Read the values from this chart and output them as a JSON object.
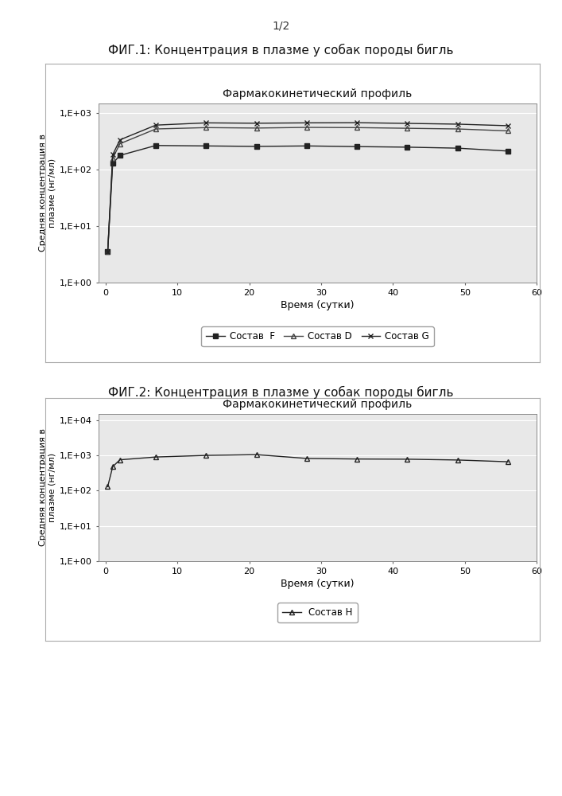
{
  "page_label": "1/2",
  "fig1_title": "ФИГ.1: Концентрация в плазме у собак породы бигль",
  "fig2_title": "ФИГ.2: Концентрация в плазме у собак породы бигль",
  "chart_title": "Фармакокинетический профиль",
  "ylabel": "Средняя концентрация в\nплазме (нг/мл)",
  "xlabel": "Время (сутки)",
  "fig1": {
    "series_F": {
      "label": "Состав  F",
      "x": [
        0.3,
        1,
        2,
        7,
        14,
        21,
        28,
        35,
        42,
        49,
        56
      ],
      "y": [
        3.5,
        130,
        180,
        270,
        265,
        260,
        265,
        258,
        252,
        242,
        215
      ],
      "marker": "s",
      "color": "#222222",
      "linestyle": "-"
    },
    "series_D": {
      "label": "Состав D",
      "x": [
        0.3,
        1,
        2,
        7,
        14,
        21,
        28,
        35,
        42,
        49,
        56
      ],
      "y": [
        3.5,
        160,
        290,
        530,
        560,
        550,
        565,
        560,
        545,
        530,
        490
      ],
      "marker": "^",
      "color": "#444444",
      "linestyle": "-"
    },
    "series_G": {
      "label": "Состав G",
      "x": [
        0.3,
        1,
        2,
        7,
        14,
        21,
        28,
        35,
        42,
        49,
        56
      ],
      "y": [
        3.5,
        185,
        340,
        620,
        680,
        670,
        680,
        685,
        665,
        645,
        605
      ],
      "marker": "x",
      "color": "#222222",
      "linestyle": "-"
    },
    "ylim": [
      1.0,
      1500.0
    ],
    "xlim": [
      -1,
      60
    ],
    "yticks": [
      1.0,
      10.0,
      100.0,
      1000.0
    ],
    "ytick_labels": [
      "1,E+00",
      "1,E+01",
      "1,E+02",
      "1,E+03"
    ],
    "xticks": [
      0,
      10,
      20,
      30,
      40,
      50,
      60
    ]
  },
  "fig2": {
    "series_H": {
      "label": "Состав H",
      "x": [
        0.3,
        1,
        2,
        7,
        14,
        21,
        28,
        35,
        42,
        49,
        56
      ],
      "y": [
        130,
        480,
        750,
        900,
        1000,
        1050,
        820,
        790,
        780,
        740,
        660
      ],
      "marker": "^",
      "color": "#222222",
      "linestyle": "-"
    },
    "ylim": [
      1.0,
      15000.0
    ],
    "xlim": [
      -1,
      60
    ],
    "yticks": [
      1.0,
      10.0,
      100.0,
      1000.0,
      10000.0
    ],
    "ytick_labels": [
      "1,E+00",
      "1,E+01",
      "1,E+02",
      "1,E+03",
      "1,E+04"
    ],
    "xticks": [
      0,
      10,
      20,
      30,
      40,
      50,
      60
    ]
  },
  "bg_color": "#ffffff",
  "plot_bg_color": "#e8e8e8",
  "grid_color": "#ffffff",
  "border_color": "#888888"
}
